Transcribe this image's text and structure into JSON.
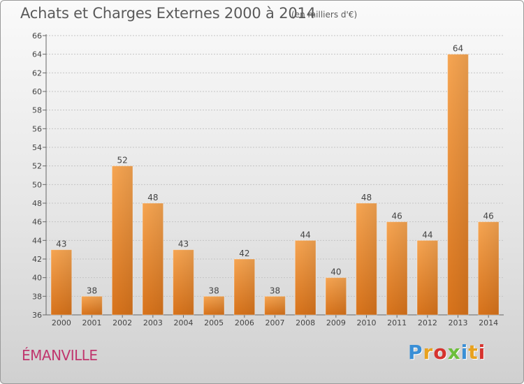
{
  "header": {
    "title": "Achats et Charges Externes 2000 à 2014",
    "subtitle": "(en milliers d'€)"
  },
  "footer": {
    "commune": "ÉMANVILLE",
    "logo": "Proxiti",
    "logo_colors": [
      "#3a8fd6",
      "#e8a21f",
      "#d6332e",
      "#6cbf3a",
      "#3a8fd6",
      "#e8a21f",
      "#d6332e"
    ]
  },
  "chart_data": {
    "type": "bar",
    "title": "Achats et Charges Externes 2000 à 2014",
    "subtitle": "(en milliers d'€)",
    "categories": [
      "2000",
      "2001",
      "2002",
      "2003",
      "2004",
      "2005",
      "2006",
      "2007",
      "2008",
      "2009",
      "2010",
      "2011",
      "2012",
      "2013",
      "2014"
    ],
    "values": [
      43,
      38,
      52,
      48,
      43,
      38,
      42,
      38,
      44,
      40,
      48,
      46,
      44,
      64,
      46
    ],
    "ylim": [
      36,
      66
    ],
    "yticks": [
      36,
      38,
      40,
      42,
      44,
      46,
      48,
      50,
      52,
      54,
      56,
      58,
      60,
      62,
      64,
      66
    ],
    "grid": true,
    "bar_color": "#f29a3c",
    "bar_color_dark": "#d8761e"
  }
}
